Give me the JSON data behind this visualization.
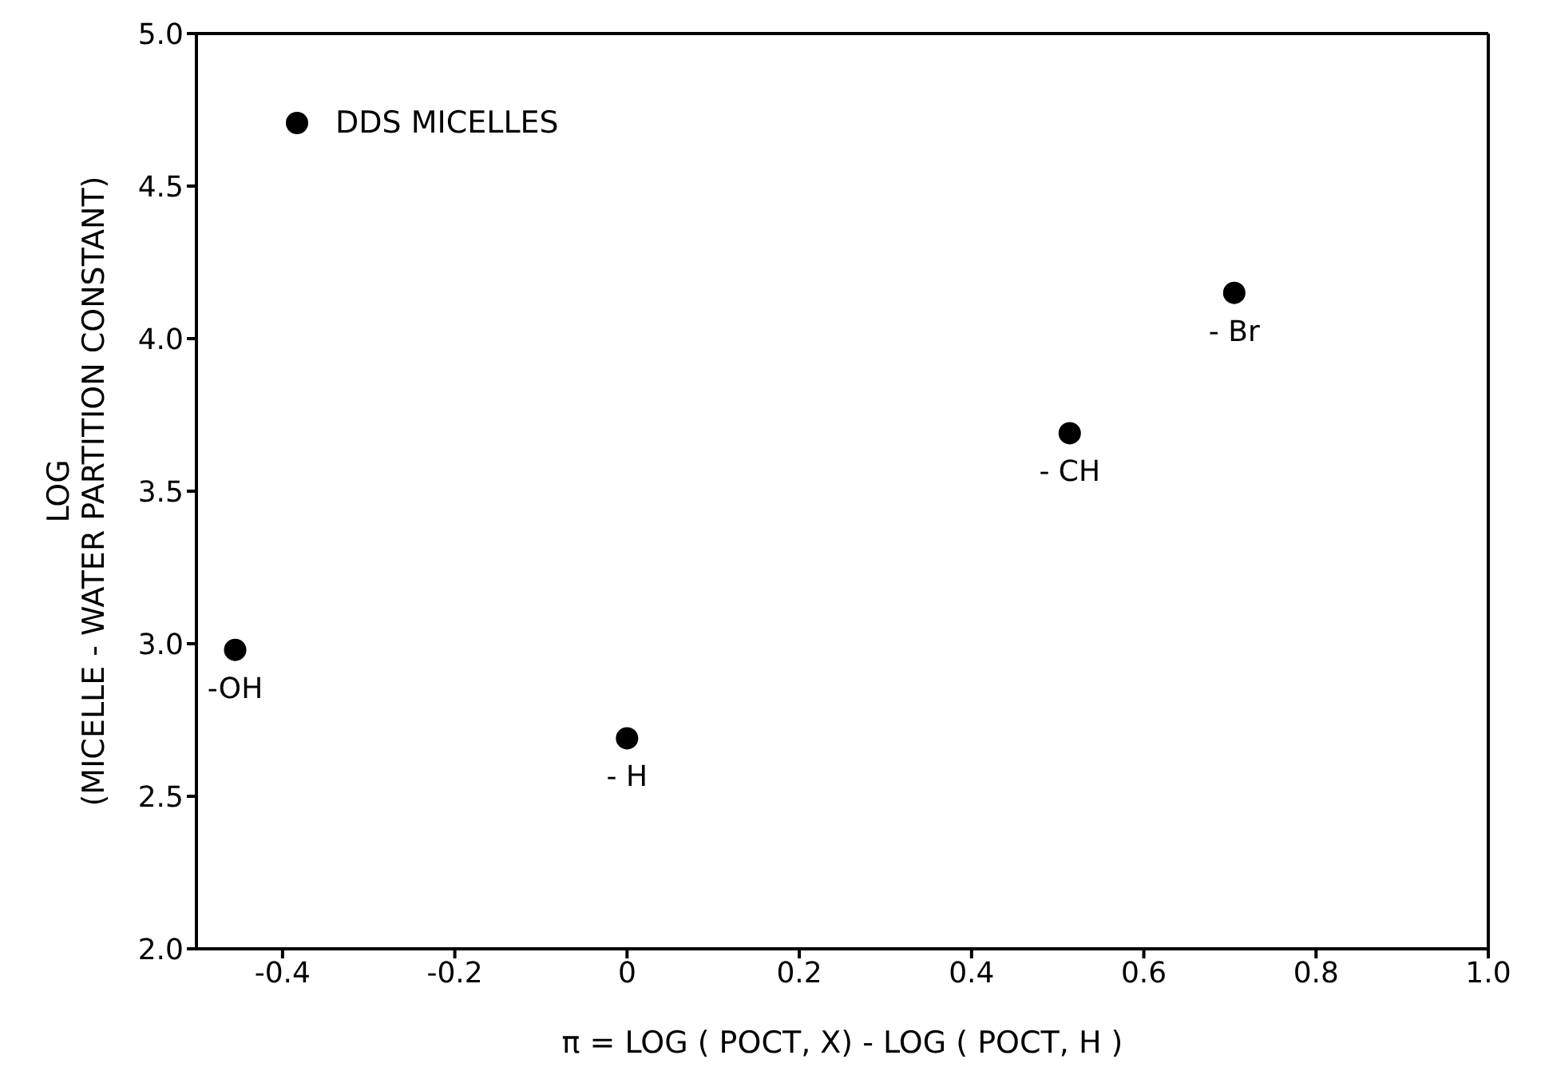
{
  "chart_data": {
    "type": "scatter",
    "xlabel": "π = LOG ( POCT, X) - LOG ( POCT, H )",
    "ylabel": "LOG\n(MICELLE - WATER PARTITION CONSTANT)",
    "x": [
      -0.455,
      0,
      0.514,
      0.705
    ],
    "series": [
      {
        "name": "DDS MICELLES",
        "color": "#000000",
        "values": [
          2.98,
          2.69,
          3.69,
          4.15
        ]
      }
    ],
    "xlim": [
      -0.5,
      1.0
    ],
    "xticks": [
      -0.4,
      -0.2,
      0,
      0.2,
      0.4,
      0.6,
      0.8,
      {
        "value": 1.0,
        "label": "1.0"
      }
    ],
    "ylim": [
      2.0,
      5.0
    ],
    "yticks": [
      {
        "value": 2.0,
        "label": "2.0"
      },
      2.5,
      {
        "value": 3.0,
        "label": "3.0"
      },
      3.5,
      {
        "value": 4.0,
        "label": "4.0"
      },
      4.5,
      {
        "value": 5.0,
        "label": "5.0"
      }
    ],
    "annotations": [
      {
        "text": "-OH",
        "x": -0.455,
        "y": 2.98
      },
      {
        "text": "- H",
        "x": 0,
        "y": 2.69
      },
      {
        "text": "- CH",
        "x": 0.514,
        "y": 3.69
      },
      {
        "text": "- Br",
        "x": 0.705,
        "y": 4.15
      }
    ],
    "grid": false,
    "legend": "top left",
    "marker": "circle"
  }
}
